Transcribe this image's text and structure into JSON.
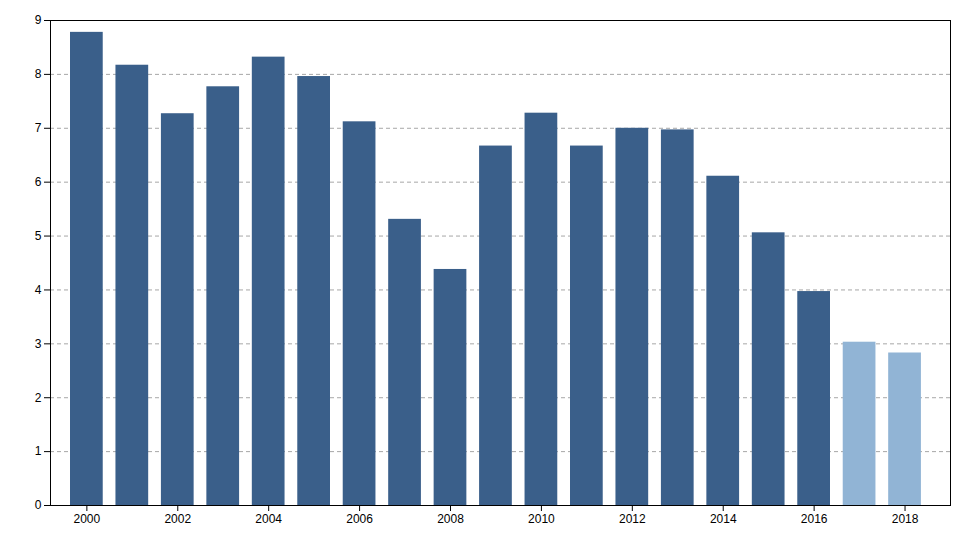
{
  "chart_data": {
    "type": "bar",
    "x": [
      2000,
      2001,
      2002,
      2003,
      2004,
      2005,
      2006,
      2007,
      2008,
      2009,
      2010,
      2011,
      2012,
      2013,
      2014,
      2015,
      2016,
      2017,
      2018
    ],
    "values": [
      8.78,
      8.17,
      7.27,
      7.77,
      8.32,
      7.96,
      7.12,
      5.31,
      4.38,
      6.67,
      7.28,
      6.67,
      7.0,
      6.97,
      6.11,
      5.06,
      3.97,
      3.03,
      2.83
    ],
    "colors": [
      "#3A5F8A",
      "#3A5F8A",
      "#3A5F8A",
      "#3A5F8A",
      "#3A5F8A",
      "#3A5F8A",
      "#3A5F8A",
      "#3A5F8A",
      "#3A5F8A",
      "#3A5F8A",
      "#3A5F8A",
      "#3A5F8A",
      "#3A5F8A",
      "#3A5F8A",
      "#3A5F8A",
      "#3A5F8A",
      "#3A5F8A",
      "#91B4D5",
      "#91B4D5"
    ],
    "xlim": [
      1999.2,
      2019.0
    ],
    "xticks": [
      2000,
      2002,
      2004,
      2006,
      2008,
      2010,
      2012,
      2014,
      2016,
      2018
    ],
    "ylim": [
      0,
      9
    ],
    "yticks": [
      0,
      1,
      2,
      3,
      4,
      5,
      6,
      7,
      8,
      9
    ],
    "grid": true
  }
}
